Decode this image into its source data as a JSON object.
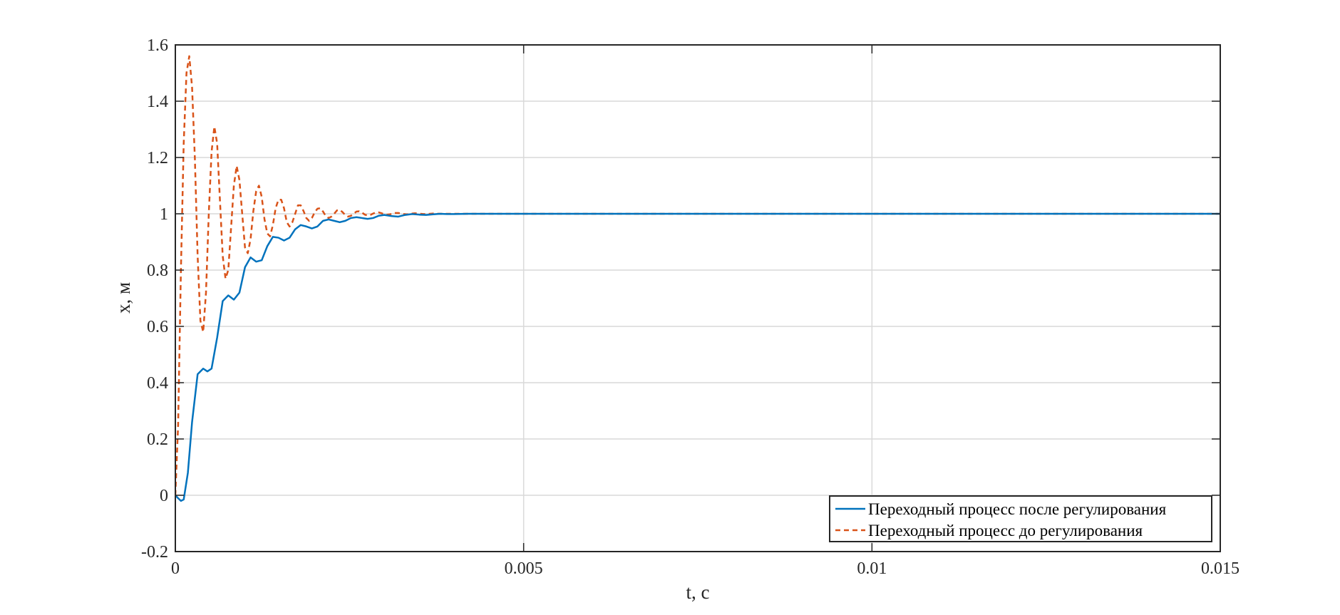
{
  "chart_data": {
    "type": "line",
    "xlabel": "t, c",
    "ylabel": "x, м",
    "xlim": [
      0,
      0.015
    ],
    "ylim": [
      -0.2,
      1.6
    ],
    "xticks": [
      {
        "value": 0,
        "label": "0"
      },
      {
        "value": 0.005,
        "label": "0.005"
      },
      {
        "value": 0.01,
        "label": "0.01"
      },
      {
        "value": 0.015,
        "label": "0.015"
      }
    ],
    "yticks": [
      {
        "value": -0.2,
        "label": "-0.2"
      },
      {
        "value": 0,
        "label": "0"
      },
      {
        "value": 0.2,
        "label": "0.2"
      },
      {
        "value": 0.4,
        "label": "0.4"
      },
      {
        "value": 0.6,
        "label": "0.6"
      },
      {
        "value": 0.8,
        "label": "0.8"
      },
      {
        "value": 1,
        "label": "1"
      },
      {
        "value": 1.2,
        "label": "1.2"
      },
      {
        "value": 1.4,
        "label": "1.4"
      },
      {
        "value": 1.6,
        "label": "1.6"
      }
    ],
    "grid": true,
    "legend_position": "bottom-right",
    "series": [
      {
        "name": "Переходный процесс после регулирования",
        "color": "#0072BD",
        "style": "solid",
        "x": [
          0,
          3e-05,
          8e-05,
          0.00012,
          0.00018,
          0.00024,
          0.00032,
          0.0004,
          0.00046,
          0.00052,
          0.0006,
          0.00068,
          0.00076,
          0.00084,
          0.00092,
          0.001,
          0.00108,
          0.00116,
          0.00124,
          0.00132,
          0.0014,
          0.00148,
          0.00156,
          0.00164,
          0.00172,
          0.0018,
          0.00188,
          0.00196,
          0.00204,
          0.00212,
          0.0022,
          0.00228,
          0.00236,
          0.00244,
          0.00252,
          0.0026,
          0.00268,
          0.00276,
          0.00284,
          0.00292,
          0.003,
          0.0031,
          0.0032,
          0.0033,
          0.0034,
          0.0035,
          0.0036,
          0.0037,
          0.0038,
          0.0039,
          0.004,
          0.0042,
          0.0045,
          0.005,
          0.006,
          0.008,
          0.01,
          0.012,
          0.015
        ],
        "y": [
          0,
          -0.008,
          -0.02,
          -0.015,
          0.08,
          0.26,
          0.43,
          0.45,
          0.44,
          0.45,
          0.56,
          0.69,
          0.71,
          0.695,
          0.72,
          0.81,
          0.845,
          0.83,
          0.835,
          0.885,
          0.918,
          0.915,
          0.905,
          0.915,
          0.945,
          0.96,
          0.955,
          0.948,
          0.955,
          0.975,
          0.98,
          0.975,
          0.97,
          0.975,
          0.985,
          0.988,
          0.985,
          0.982,
          0.985,
          0.993,
          0.996,
          0.992,
          0.99,
          0.996,
          0.999,
          0.997,
          0.996,
          0.998,
          1.0,
          0.999,
          0.999,
          1.0,
          1.0,
          1.0,
          1.0,
          1.0,
          1.0,
          1.0,
          1.0
        ]
      },
      {
        "name": "Переходный процесс до регулирования",
        "color": "#D95319",
        "style": "dashed",
        "x": [
          0,
          4e-05,
          8e-05,
          0.00012,
          0.00016,
          0.0002,
          0.00024,
          0.00028,
          0.00032,
          0.00036,
          0.0004,
          0.00044,
          0.00048,
          0.00052,
          0.00056,
          0.0006,
          0.00064,
          0.00068,
          0.00072,
          0.00076,
          0.0008,
          0.00084,
          0.00088,
          0.00092,
          0.00096,
          0.001,
          0.00104,
          0.00108,
          0.00112,
          0.00116,
          0.0012,
          0.00124,
          0.00128,
          0.00132,
          0.00136,
          0.0014,
          0.00144,
          0.00148,
          0.00152,
          0.00156,
          0.0016,
          0.00164,
          0.00168,
          0.00172,
          0.00176,
          0.0018,
          0.00184,
          0.00188,
          0.00192,
          0.00196,
          0.002,
          0.00204,
          0.00208,
          0.00212,
          0.00216,
          0.0022,
          0.00224,
          0.00228,
          0.00232,
          0.00236,
          0.0024,
          0.00244,
          0.00248,
          0.00252,
          0.00256,
          0.0026,
          0.00264,
          0.00268,
          0.00272,
          0.00276,
          0.0028,
          0.00284,
          0.00288,
          0.00292,
          0.00296,
          0.003,
          0.00304,
          0.00308,
          0.00312,
          0.00316,
          0.0032,
          0.00324,
          0.00328,
          0.00332,
          0.00336,
          0.0034,
          0.00344,
          0.00348,
          0.00352,
          0.00356,
          0.0036,
          0.0037,
          0.0038,
          0.0039,
          0.004,
          0.0042,
          0.0045,
          0.005,
          0.006,
          0.008,
          0.01,
          0.012,
          0.015
        ],
        "y": [
          0,
          0.25,
          0.8,
          1.25,
          1.5,
          1.56,
          1.45,
          1.2,
          0.85,
          0.62,
          0.58,
          0.72,
          1.0,
          1.22,
          1.31,
          1.25,
          1.05,
          0.85,
          0.77,
          0.8,
          0.95,
          1.1,
          1.17,
          1.12,
          1.0,
          0.88,
          0.86,
          0.91,
          1.01,
          1.08,
          1.1,
          1.06,
          0.98,
          0.93,
          0.92,
          0.96,
          1.02,
          1.05,
          1.05,
          1.02,
          0.97,
          0.955,
          0.97,
          1.0,
          1.03,
          1.03,
          1.01,
          0.985,
          0.975,
          0.985,
          1.005,
          1.018,
          1.02,
          1.008,
          0.992,
          0.985,
          0.99,
          1.0,
          1.012,
          1.014,
          1.006,
          0.995,
          0.99,
          0.993,
          1.0,
          1.008,
          1.009,
          1.004,
          0.997,
          0.994,
          0.996,
          1.001,
          1.005,
          1.005,
          1.002,
          0.998,
          0.997,
          0.998,
          1.001,
          1.003,
          1.003,
          1.001,
          0.999,
          0.998,
          0.999,
          1.001,
          1.002,
          1.001,
          1.0,
          0.999,
          0.999,
          1.001,
          1.0,
          1.0,
          1.0,
          1.0,
          1.0,
          1.0,
          1.0,
          1.0,
          1.0,
          1.0,
          1.0
        ]
      }
    ]
  }
}
